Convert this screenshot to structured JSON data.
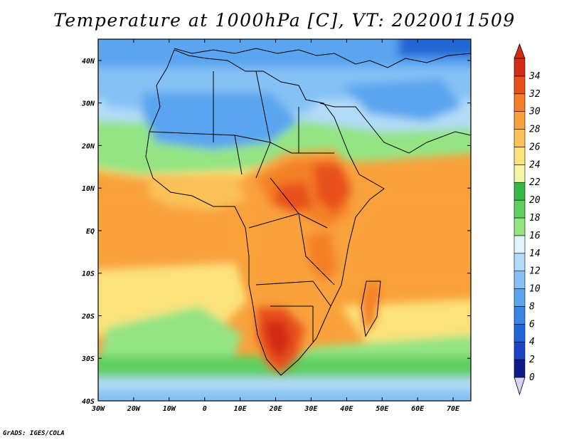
{
  "title": "Temperature at 1000hPa [C], VT: 2020011509",
  "credit": "GrADS: IGES/COLA",
  "map": {
    "lon_range": [
      -30,
      75
    ],
    "lat_range": [
      -40,
      45
    ],
    "lon_ticks": [
      {
        "value": -30,
        "label": "30W"
      },
      {
        "value": -20,
        "label": "20W"
      },
      {
        "value": -10,
        "label": "10W"
      },
      {
        "value": 0,
        "label": "0"
      },
      {
        "value": 10,
        "label": "10E"
      },
      {
        "value": 20,
        "label": "20E"
      },
      {
        "value": 30,
        "label": "30E"
      },
      {
        "value": 40,
        "label": "40E"
      },
      {
        "value": 50,
        "label": "50E"
      },
      {
        "value": 60,
        "label": "60E"
      },
      {
        "value": 70,
        "label": "70E"
      }
    ],
    "lat_ticks": [
      {
        "value": 40,
        "label": "40N"
      },
      {
        "value": 30,
        "label": "30N"
      },
      {
        "value": 20,
        "label": "20N"
      },
      {
        "value": 10,
        "label": "10N"
      },
      {
        "value": 0,
        "label": "EQ"
      },
      {
        "value": -10,
        "label": "10S"
      },
      {
        "value": -20,
        "label": "20S"
      },
      {
        "value": -30,
        "label": "30S"
      },
      {
        "value": -40,
        "label": "40S"
      }
    ]
  },
  "colorbar": {
    "levels": [
      0,
      2,
      4,
      6,
      8,
      10,
      12,
      14,
      16,
      18,
      20,
      22,
      24,
      26,
      28,
      30,
      32,
      34
    ],
    "colors": [
      "#0c1d8a",
      "#1b45c2",
      "#2166d6",
      "#3a86e6",
      "#5aa5ef",
      "#85c1f5",
      "#b2dbf7",
      "#e0f5fb",
      "#94e484",
      "#5fcf60",
      "#36b845",
      "#f4f5a6",
      "#fbe27a",
      "#fbc25a",
      "#f9a23c",
      "#f48028",
      "#e9511c",
      "#d42c14"
    ],
    "under_color": "#d8d2f4",
    "over_color": "#d42c14"
  }
}
